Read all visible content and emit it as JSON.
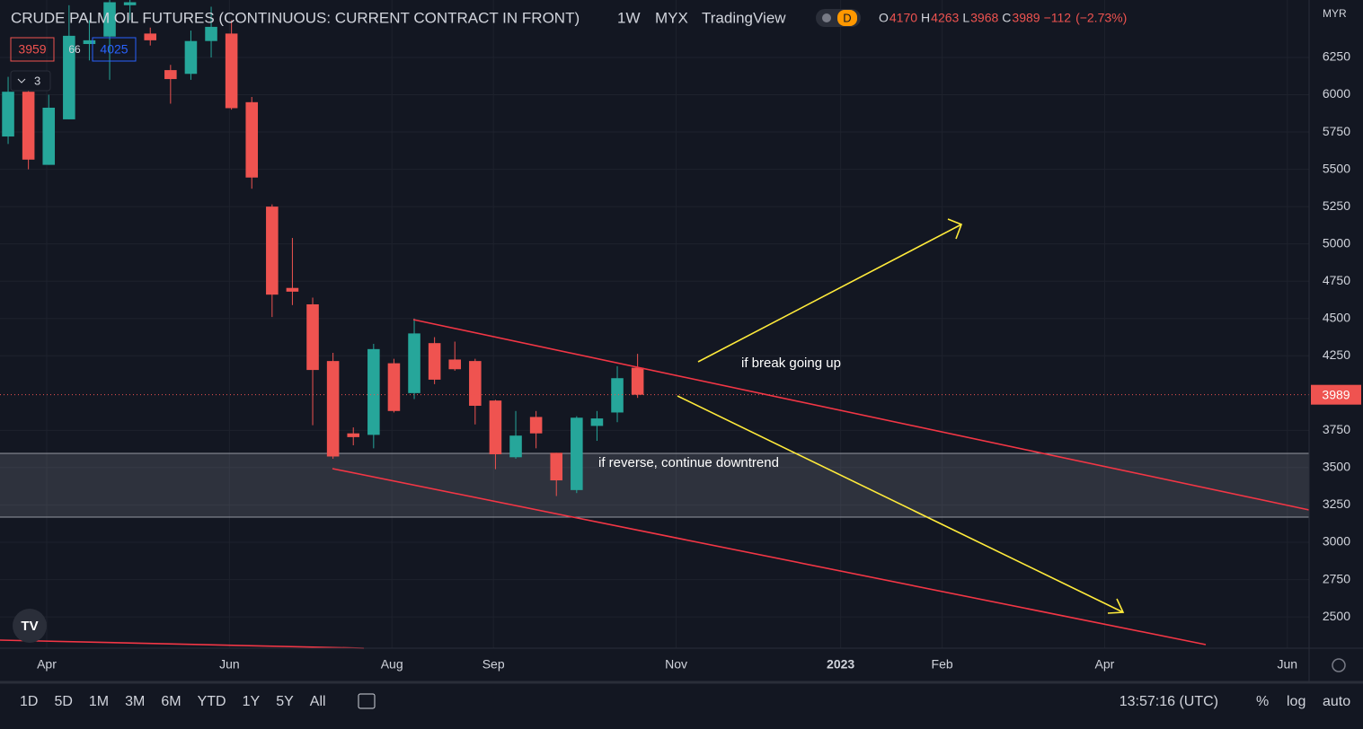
{
  "chart_data": {
    "type": "candlestick",
    "title": "CRUDE PALM OIL FUTURES (CONTINUOUS: CURRENT CONTRACT IN FRONT)",
    "interval": "1W",
    "exchange": "MYX",
    "source": "TradingView",
    "currency": "MYR",
    "x": [
      0,
      1,
      2,
      3,
      4,
      5,
      6,
      7,
      8,
      9,
      10,
      11,
      12,
      13,
      14,
      15,
      16,
      17,
      18,
      19,
      20,
      21,
      22,
      23,
      24,
      25,
      26,
      27,
      28,
      29,
      30,
      31
    ],
    "open": [
      5720,
      6020,
      5530,
      5835,
      6340,
      6390,
      6600,
      6410,
      6165,
      6140,
      6360,
      6410,
      5950,
      5250,
      4705,
      4595,
      4215,
      3730,
      3720,
      4200,
      4000,
      4335,
      4225,
      4215,
      3950,
      3570,
      3840,
      3600,
      3350,
      3780,
      3870,
      4170
    ],
    "high": [
      6120,
      6100,
      6000,
      6600,
      6500,
      6635,
      6635,
      6450,
      6200,
      6430,
      6590,
      6500,
      5985,
      5265,
      5040,
      4640,
      4270,
      3770,
      4330,
      4230,
      4500,
      4375,
      4345,
      4230,
      3955,
      3880,
      3880,
      3600,
      3845,
      3880,
      4180,
      4263
    ],
    "low": [
      5670,
      5500,
      5530,
      5835,
      6230,
      6100,
      6500,
      6330,
      5940,
      6100,
      6250,
      5900,
      5370,
      4510,
      4590,
      3785,
      3560,
      3650,
      3630,
      3870,
      3960,
      4060,
      4150,
      3790,
      3490,
      3560,
      3630,
      3310,
      3330,
      3680,
      3805,
      3968
    ],
    "close": [
      6020,
      5565,
      5913,
      6395,
      6365,
      6620,
      6620,
      6365,
      6105,
      6360,
      6455,
      5910,
      5445,
      4660,
      4680,
      4155,
      3575,
      3705,
      4295,
      3880,
      4400,
      4090,
      4160,
      3915,
      3590,
      3715,
      3730,
      3415,
      3835,
      3830,
      4100,
      3989
    ],
    "up_color": "#26a69a",
    "down_color": "#ef5350",
    "ylim": [
      2290,
      6635
    ],
    "yticks": [
      2500,
      2750,
      3000,
      3250,
      3500,
      3750,
      4250,
      4500,
      4750,
      5000,
      5250,
      5500,
      5750,
      6000,
      6250
    ],
    "xlim": [
      -0.4,
      64.07
    ],
    "xticks": [
      {
        "value": 1.9,
        "label": "Apr"
      },
      {
        "value": 10.9,
        "label": "Jun"
      },
      {
        "value": 18.9,
        "label": "Aug"
      },
      {
        "value": 23.9,
        "label": "Sep"
      },
      {
        "value": 32.9,
        "label": "Nov"
      },
      {
        "value": 41.0,
        "label": "2023"
      },
      {
        "value": 46.0,
        "label": "Feb"
      },
      {
        "value": 54.0,
        "label": "Apr"
      },
      {
        "value": 63.0,
        "label": "Jun"
      }
    ],
    "grid": true,
    "ohlc_letters": [
      "O",
      "H",
      "L",
      "C"
    ],
    "change": "−112",
    "change_pct": "(−2.73%)",
    "annotations": [
      "if break going up",
      "if reverse, continue downtrend"
    ]
  },
  "ui": {
    "badge": "D",
    "indicator": [
      "3959",
      "66",
      "4025"
    ],
    "collapse": "3",
    "ranges": [
      "1D",
      "5D",
      "1M",
      "3M",
      "6M",
      "YTD",
      "1Y",
      "5Y",
      "All"
    ],
    "clock": "13:57:16 (UTC)",
    "scale_opts": [
      "%",
      "log",
      "auto"
    ]
  }
}
